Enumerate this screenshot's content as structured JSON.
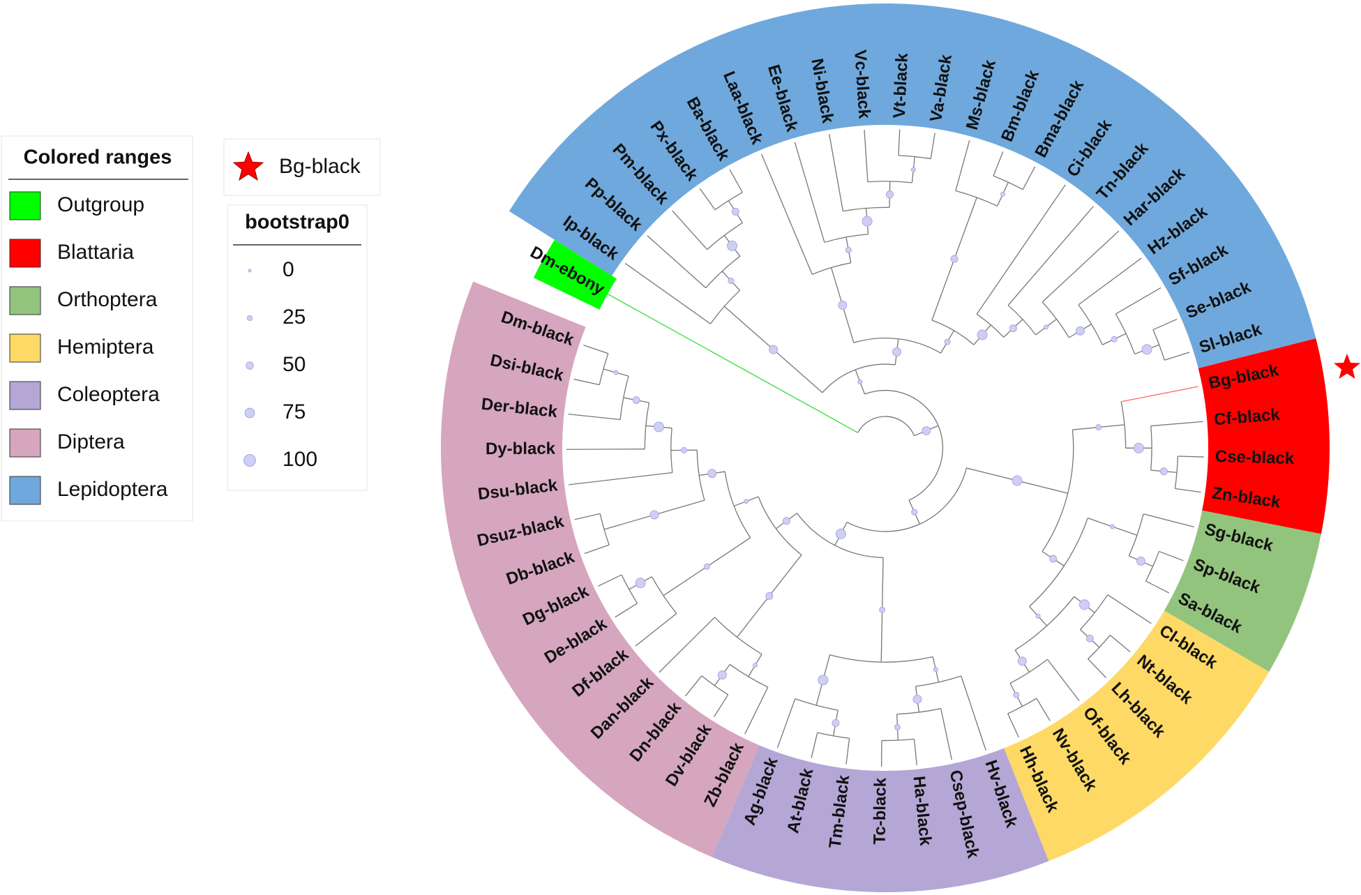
{
  "colored_ranges": {
    "title": "Colored ranges",
    "ranges": [
      {
        "name": "Outgroup",
        "color": "#00ff00",
        "leaves": [
          "Dm-ebony"
        ]
      },
      {
        "name": "Blattaria",
        "color": "#ff0000",
        "leaves": [
          "Bg-black",
          "Cf-black",
          "Cse-black",
          "Zn-black"
        ]
      },
      {
        "name": "Orthoptera",
        "color": "#93c47d",
        "leaves": [
          "Sg-black",
          "Sp-black",
          "Sa-black"
        ]
      },
      {
        "name": "Hemiptera",
        "color": "#ffd966",
        "leaves": [
          "Cl-black",
          "Nt-black",
          "Lh-black",
          "Of-black",
          "Nv-black",
          "Hh-black"
        ]
      },
      {
        "name": "Coleoptera",
        "color": "#b4a7d6",
        "leaves": [
          "Hv-black",
          "Csep-black",
          "Ha-black",
          "Tc-black",
          "Tm-black",
          "At-black",
          "Ag-black"
        ]
      },
      {
        "name": "Diptera",
        "color": "#d5a6bd",
        "leaves": [
          "Zb-black",
          "Dv-black",
          "Dn-black",
          "Dan-black",
          "Df-black",
          "De-black",
          "Dg-black",
          "Db-black",
          "Dsuz-black",
          "Dsu-black",
          "Dy-black",
          "Der-black",
          "Dsi-black",
          "Dm-black"
        ]
      },
      {
        "name": "Lepidoptera",
        "color": "#6fa8dc",
        "leaves": [
          "Ip-black",
          "Pp-black",
          "Pm-black",
          "Px-black",
          "Ba-black",
          "Laa-black",
          "Ee-black",
          "Ni-black",
          "Vc-black",
          "Vt-black",
          "Va-black",
          "Ms-black",
          "Bm-black",
          "Bma-black",
          "Ci-black",
          "Tn-black",
          "Har-black",
          "Hz-black",
          "Sf-black",
          "Se-black",
          "Sl-black"
        ]
      }
    ]
  },
  "highlight_legend": {
    "label": "Bg-black"
  },
  "bootstrap_legend": {
    "title": "bootstrap0",
    "values": [
      0,
      25,
      50,
      75,
      100
    ]
  }
}
